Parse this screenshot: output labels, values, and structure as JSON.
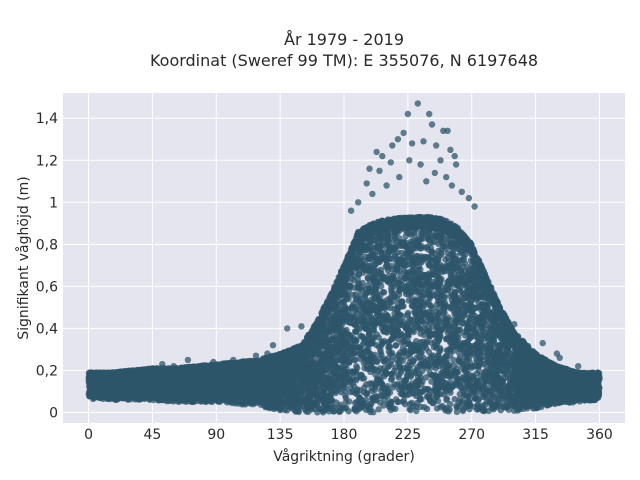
{
  "chart_data": {
    "type": "scatter",
    "title_line1": "År 1979 - 2019",
    "title_line2": "Koordinat (Sweref 99 TM): E 355076, N 6197648",
    "xlabel": "Vågriktning (grader)",
    "ylabel": "Signifikant våghöjd (m)",
    "xlim": [
      -18,
      378
    ],
    "ylim": [
      -0.05,
      1.52
    ],
    "xticks": [
      0,
      45,
      90,
      135,
      180,
      225,
      270,
      315,
      360
    ],
    "xtick_labels": [
      "0",
      "45",
      "90",
      "135",
      "180",
      "225",
      "270",
      "315",
      "360"
    ],
    "yticks": [
      0,
      0.2,
      0.4,
      0.6,
      0.8,
      1.0,
      1.2,
      1.4
    ],
    "ytick_labels": [
      "0",
      "0,2",
      "0,4",
      "0,6",
      "0,8",
      "1",
      "1,2",
      "1,4"
    ],
    "grid": true,
    "marker_color": "#2e566b",
    "background_color": "#e5e5ef",
    "envelope": {
      "x": [
        0,
        15,
        30,
        45,
        60,
        75,
        90,
        105,
        120,
        135,
        150,
        160,
        170,
        180,
        190,
        200,
        210,
        225,
        240,
        250,
        260,
        270,
        280,
        290,
        300,
        315,
        330,
        345,
        360
      ],
      "y_max": [
        0.19,
        0.19,
        0.2,
        0.21,
        0.21,
        0.22,
        0.23,
        0.24,
        0.25,
        0.28,
        0.32,
        0.42,
        0.55,
        0.7,
        0.86,
        0.9,
        0.92,
        0.93,
        0.93,
        0.92,
        0.88,
        0.8,
        0.65,
        0.5,
        0.38,
        0.28,
        0.22,
        0.19,
        0.19
      ],
      "y_min": [
        0.06,
        0.06,
        0.06,
        0.06,
        0.05,
        0.05,
        0.05,
        0.04,
        0.03,
        0.01,
        0.0,
        0.0,
        0.0,
        0.0,
        0.0,
        0.0,
        0.0,
        0.0,
        0.0,
        0.0,
        0.0,
        0.0,
        0.0,
        0.0,
        0.0,
        0.02,
        0.04,
        0.05,
        0.06
      ]
    },
    "outliers": [
      {
        "x": 225,
        "y": 1.42
      },
      {
        "x": 232,
        "y": 1.47
      },
      {
        "x": 240,
        "y": 1.42
      },
      {
        "x": 250,
        "y": 1.34
      },
      {
        "x": 253,
        "y": 1.34
      },
      {
        "x": 242,
        "y": 1.37
      },
      {
        "x": 218,
        "y": 1.3
      },
      {
        "x": 222,
        "y": 1.33
      },
      {
        "x": 214,
        "y": 1.27
      },
      {
        "x": 228,
        "y": 1.28
      },
      {
        "x": 236,
        "y": 1.29
      },
      {
        "x": 245,
        "y": 1.27
      },
      {
        "x": 255,
        "y": 1.25
      },
      {
        "x": 258,
        "y": 1.22
      },
      {
        "x": 207,
        "y": 1.22
      },
      {
        "x": 203,
        "y": 1.24
      },
      {
        "x": 213,
        "y": 1.19
      },
      {
        "x": 226,
        "y": 1.2
      },
      {
        "x": 234,
        "y": 1.18
      },
      {
        "x": 248,
        "y": 1.2
      },
      {
        "x": 259,
        "y": 1.18
      },
      {
        "x": 198,
        "y": 1.16
      },
      {
        "x": 205,
        "y": 1.15
      },
      {
        "x": 244,
        "y": 1.14
      },
      {
        "x": 252,
        "y": 1.12
      },
      {
        "x": 219,
        "y": 1.12
      },
      {
        "x": 196,
        "y": 1.09
      },
      {
        "x": 210,
        "y": 1.08
      },
      {
        "x": 238,
        "y": 1.1
      },
      {
        "x": 256,
        "y": 1.08
      },
      {
        "x": 263,
        "y": 1.05
      },
      {
        "x": 268,
        "y": 1.02
      },
      {
        "x": 200,
        "y": 1.04
      },
      {
        "x": 185,
        "y": 0.96
      },
      {
        "x": 190,
        "y": 1.0
      },
      {
        "x": 272,
        "y": 0.98
      },
      {
        "x": 70,
        "y": 0.25
      },
      {
        "x": 52,
        "y": 0.23
      },
      {
        "x": 60,
        "y": 0.22
      },
      {
        "x": 88,
        "y": 0.24
      },
      {
        "x": 102,
        "y": 0.25
      },
      {
        "x": 118,
        "y": 0.27
      },
      {
        "x": 126,
        "y": 0.28
      },
      {
        "x": 320,
        "y": 0.33
      },
      {
        "x": 330,
        "y": 0.28
      },
      {
        "x": 332,
        "y": 0.26
      },
      {
        "x": 345,
        "y": 0.22
      },
      {
        "x": 300,
        "y": 0.42
      },
      {
        "x": 140,
        "y": 0.4
      },
      {
        "x": 150,
        "y": 0.41
      },
      {
        "x": 130,
        "y": 0.32
      }
    ]
  }
}
